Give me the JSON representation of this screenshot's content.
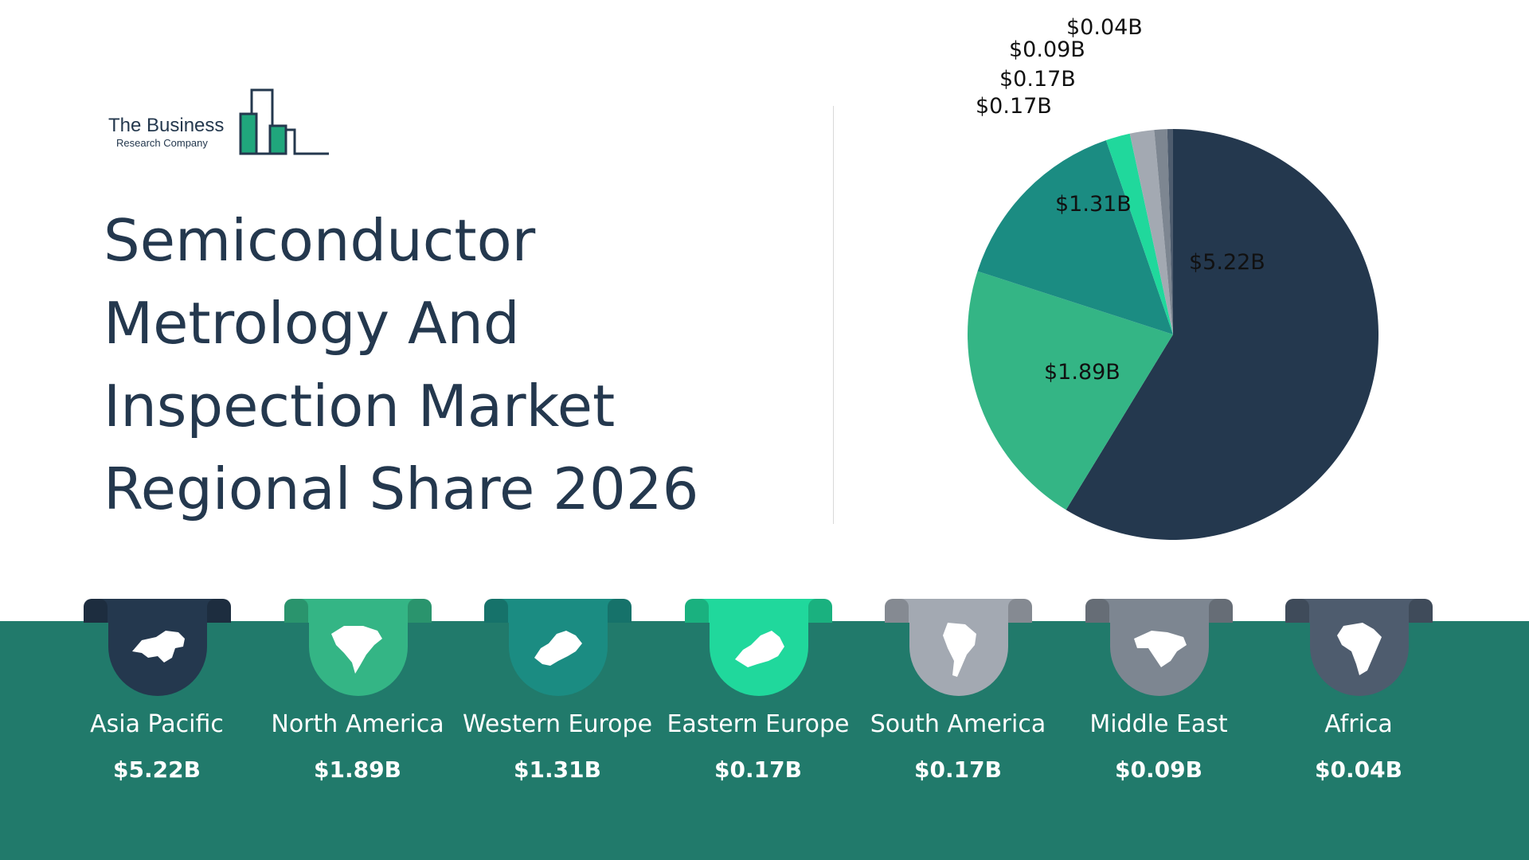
{
  "logo": {
    "line1": "The Business",
    "line2": "Research Company"
  },
  "title": "Semiconductor Metrology And Inspection Market Regional Share 2026",
  "chart_data": {
    "type": "pie",
    "title": "Semiconductor Metrology And Inspection Market Regional Share 2026",
    "categories": [
      "Asia Pacific",
      "North America",
      "Western Europe",
      "Eastern Europe",
      "South America",
      "Middle East",
      "Africa"
    ],
    "values": [
      5.22,
      1.89,
      1.31,
      0.17,
      0.17,
      0.09,
      0.04
    ],
    "labels": [
      "$5.22B",
      "$1.89B",
      "$1.31B",
      "$0.17B",
      "$0.17B",
      "$0.09B",
      "$0.04B"
    ],
    "colors": [
      "#24384e",
      "#34b585",
      "#1b8c82",
      "#20d89c",
      "#a3a9b2",
      "#7d8691",
      "#4e5c6e"
    ],
    "unit": "$B"
  },
  "regions": [
    {
      "name": "Asia Pacific",
      "value": "$5.22B",
      "color": "#24384e",
      "icon": "asia-map-icon"
    },
    {
      "name": "North America",
      "value": "$1.89B",
      "color": "#34b585",
      "icon": "north-america-map-icon"
    },
    {
      "name": "Western Europe",
      "value": "$1.31B",
      "color": "#1b8c82",
      "icon": "western-europe-map-icon"
    },
    {
      "name": "Eastern Europe",
      "value": "$0.17B",
      "color": "#20d89c",
      "icon": "eastern-europe-map-icon"
    },
    {
      "name": "South America",
      "value": "$0.17B",
      "color": "#a3a9b2",
      "icon": "south-america-map-icon"
    },
    {
      "name": "Middle East",
      "value": "$0.09B",
      "color": "#7d8691",
      "icon": "middle-east-map-icon"
    },
    {
      "name": "Africa",
      "value": "$0.04B",
      "color": "#4e5c6e",
      "icon": "africa-map-icon"
    }
  ],
  "colors": {
    "band": "#217a6b",
    "title": "#24384e"
  }
}
